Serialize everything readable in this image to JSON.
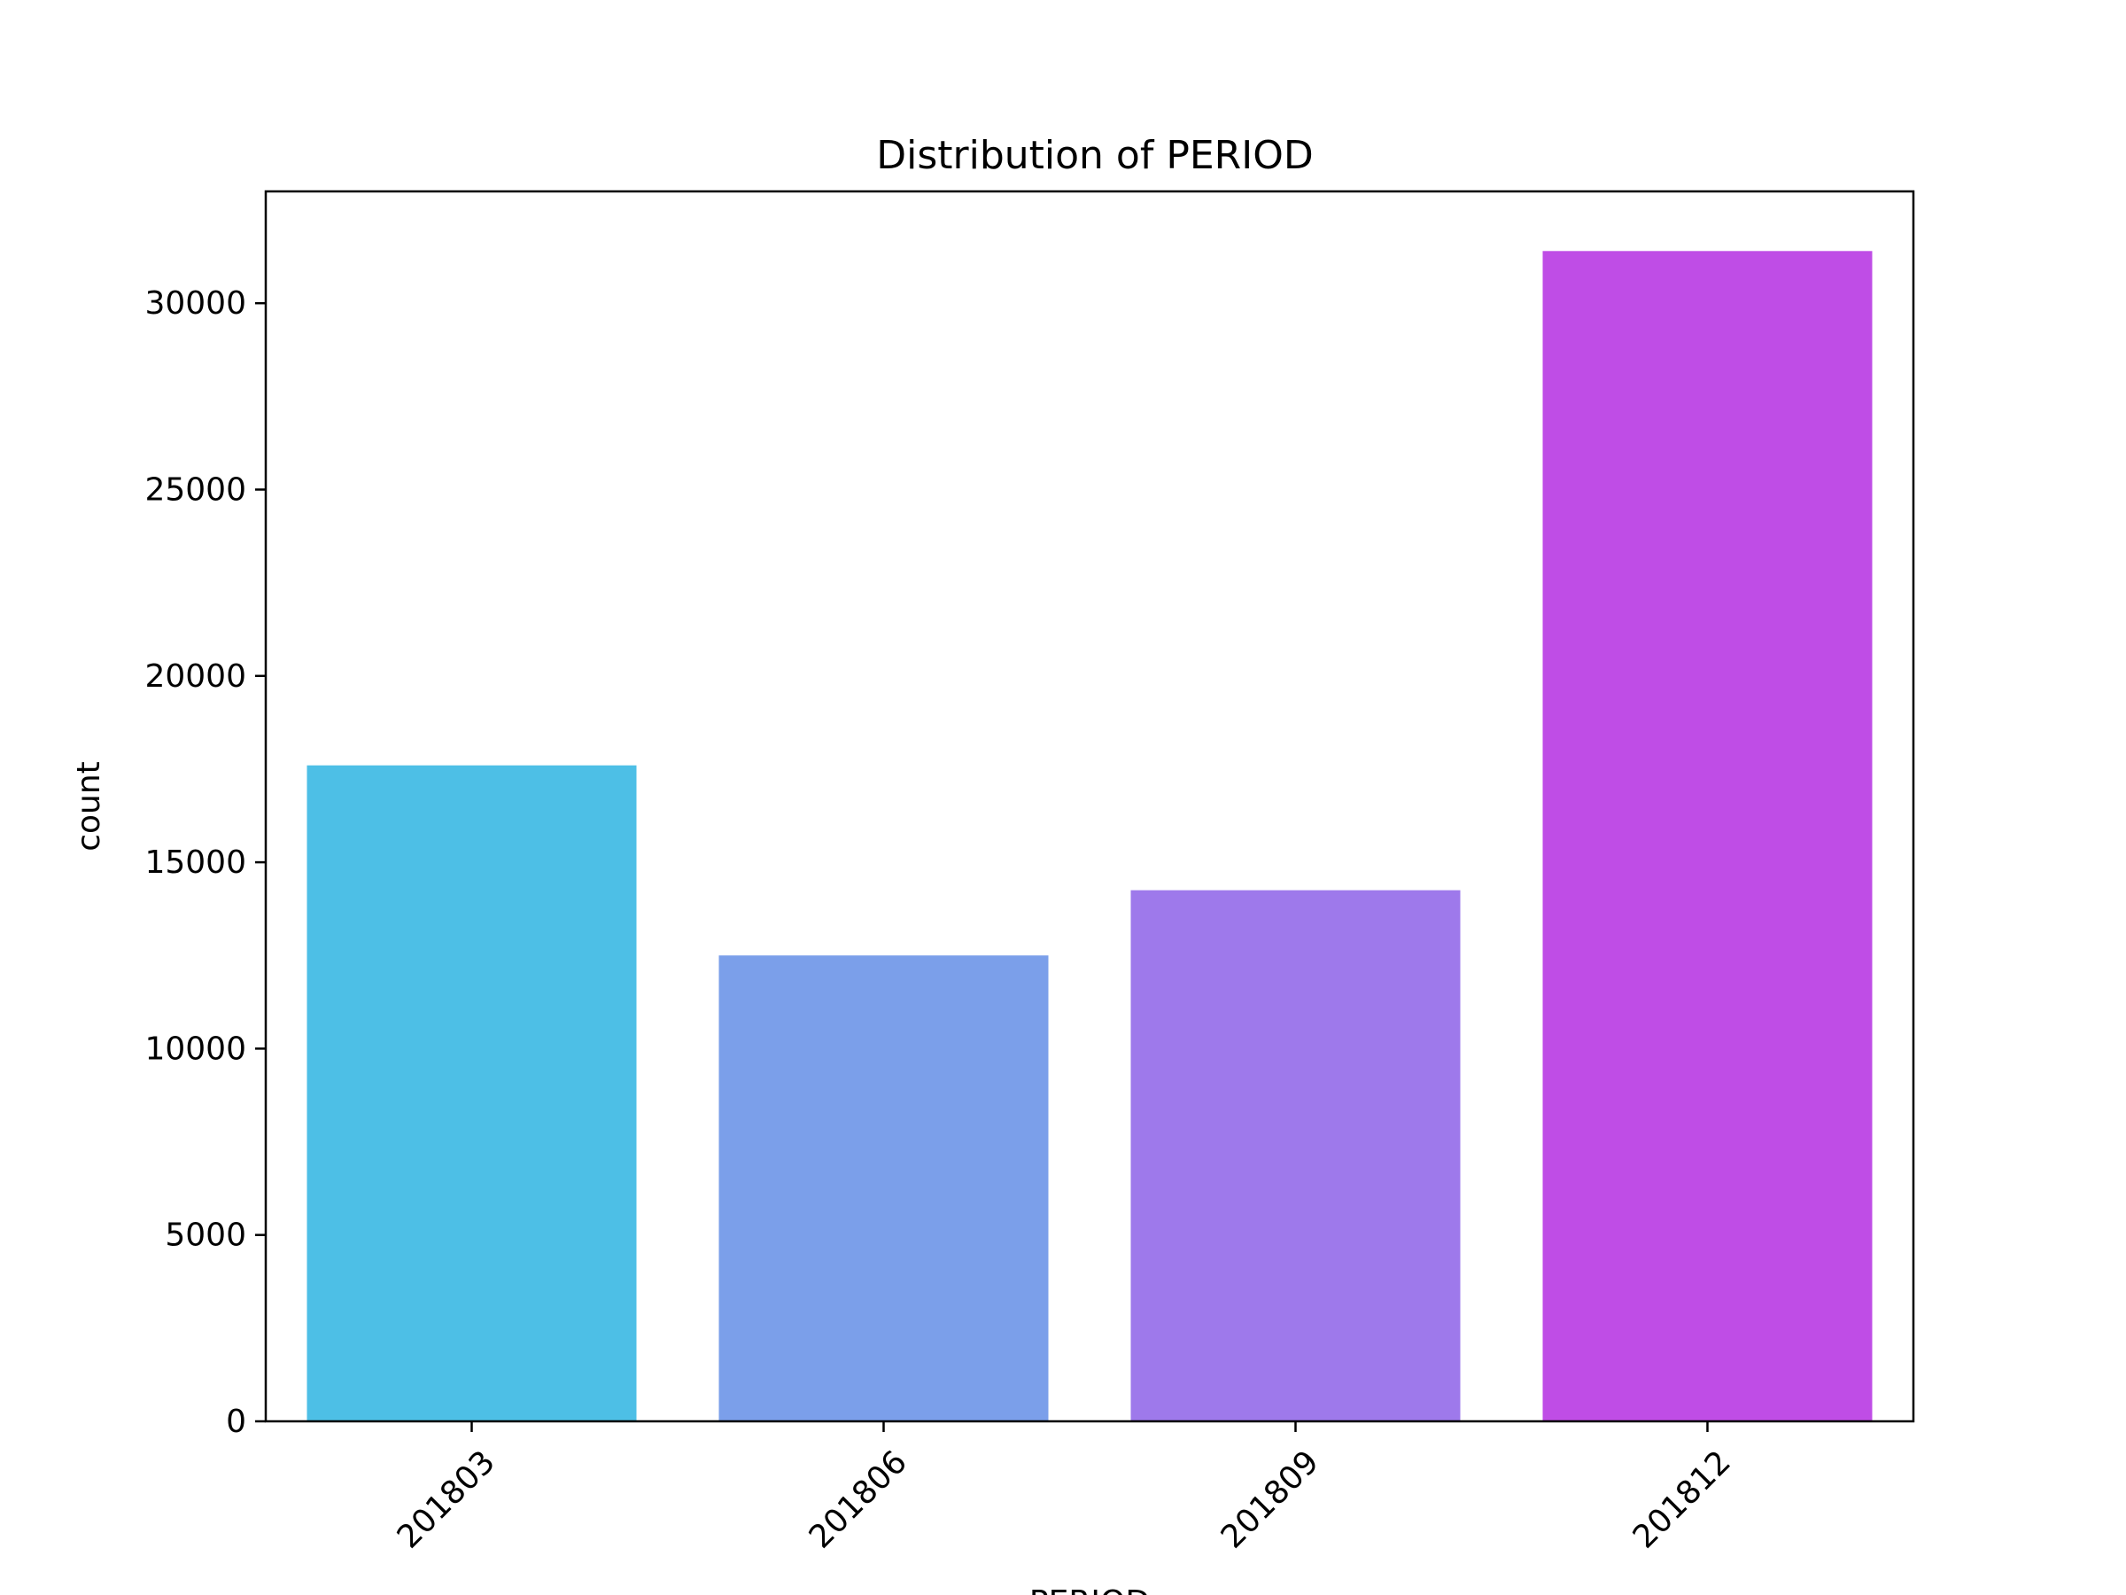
{
  "chart_data": {
    "type": "bar",
    "title": "Distribution of PERIOD",
    "xlabel": "PERIOD",
    "ylabel": "count",
    "categories": [
      "201803",
      "201806",
      "201809",
      "201812"
    ],
    "values": [
      17600,
      12500,
      14250,
      31400
    ],
    "colors": [
      "#4dbfe6",
      "#7b9fea",
      "#9e79eb",
      "#bf4de6"
    ],
    "yticks": [
      0,
      5000,
      10000,
      15000,
      20000,
      25000,
      30000
    ],
    "ytick_labels": [
      "0",
      "5000",
      "10000",
      "15000",
      "20000",
      "25000",
      "30000"
    ],
    "ylim": [
      0,
      33000
    ],
    "grid": false,
    "legend": "none"
  }
}
